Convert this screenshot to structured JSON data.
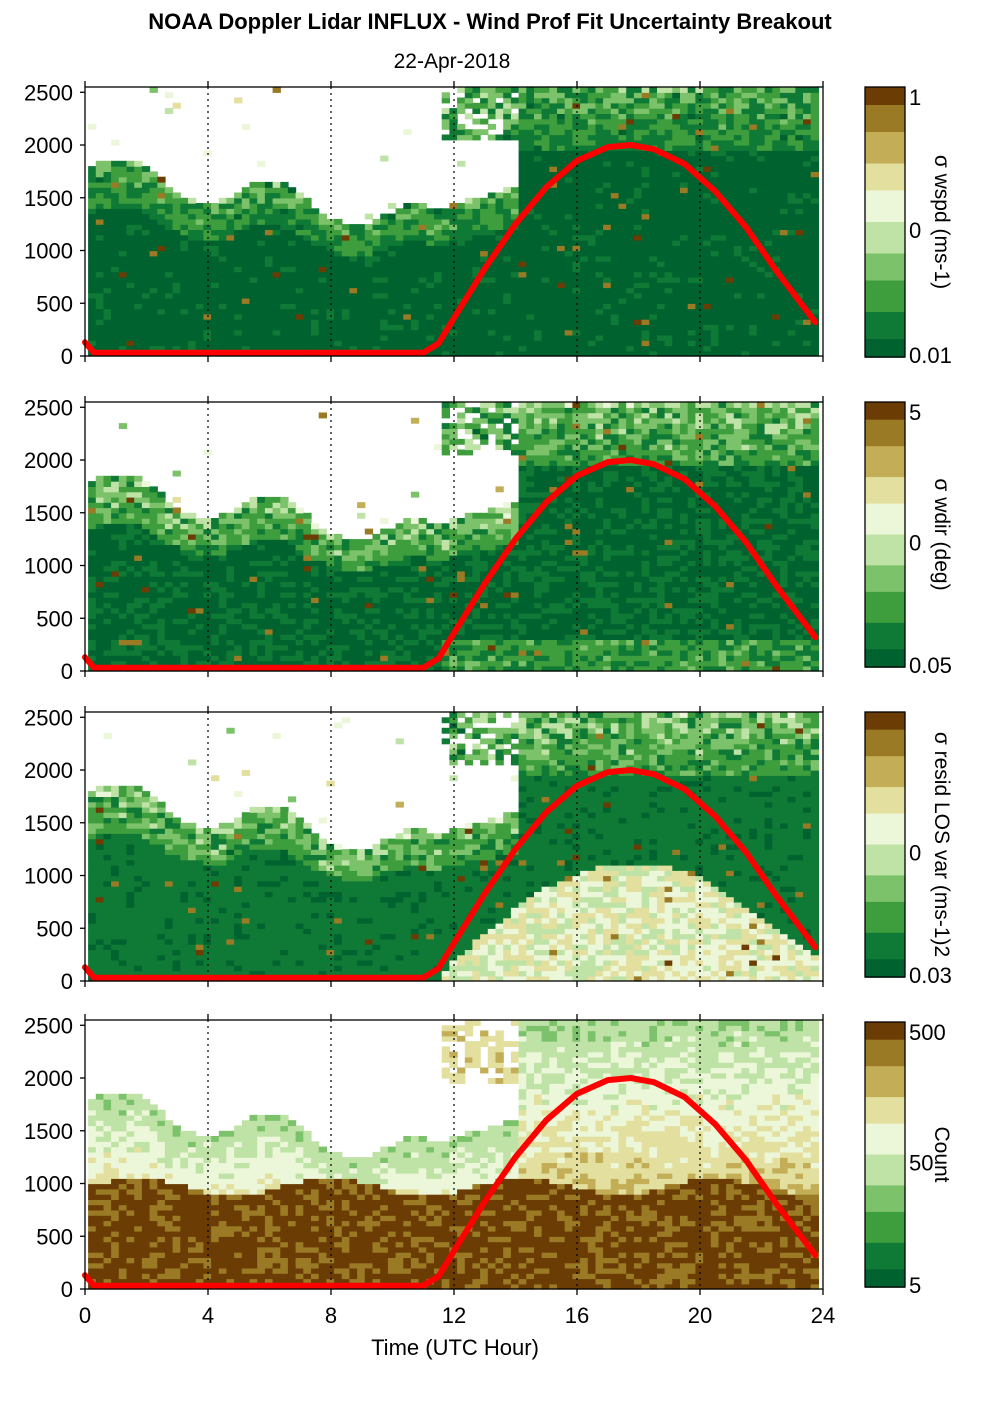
{
  "title": "NOAA Doppler Lidar INFLUX - Wind Prof Fit Uncertainty Breakout",
  "subtitle": "22-Apr-2018",
  "chart_data": {
    "type": "heatmap",
    "xlabel": "Time (UTC Hour)",
    "xlim": [
      0,
      24
    ],
    "xticks": [
      0,
      4,
      8,
      12,
      16,
      20,
      24
    ],
    "ylim": [
      0,
      2550
    ],
    "yticks": [
      0,
      500,
      1000,
      1500,
      2000,
      2500
    ],
    "vertical_gridlines_dotted_at": [
      4,
      8,
      12,
      16,
      20
    ],
    "colormap": [
      "#00622f",
      "#0e7a36",
      "#3e9e3e",
      "#7cc26a",
      "#bfe3a6",
      "#ecf7d9",
      "#e3df9e",
      "#c3ae57",
      "#9a7a25",
      "#6b3d05"
    ],
    "overlay_curve": {
      "color": "#ff0000",
      "x": [
        0,
        0.3,
        11.0,
        11.5,
        12,
        13,
        14,
        15,
        16,
        17,
        17.75,
        18.5,
        19.5,
        20.5,
        21.5,
        22.5,
        23.75
      ],
      "y": [
        130,
        30,
        30,
        120,
        360,
        830,
        1250,
        1600,
        1850,
        1980,
        2000,
        1960,
        1820,
        1560,
        1220,
        800,
        320
      ]
    },
    "panels": [
      {
        "colorbar_label": "σ wspd (ms-1)",
        "cbar_ticks": [
          "1",
          "0",
          "0.01"
        ],
        "cbar_scale": "log"
      },
      {
        "colorbar_label": "σ wdir (deg)",
        "cbar_ticks": [
          "5",
          "0",
          "0.05"
        ],
        "cbar_scale": "log"
      },
      {
        "colorbar_label": "σ resid LOS var (ms-1)2",
        "cbar_ticks": [
          "",
          "0",
          "0.03"
        ],
        "cbar_scale": "log"
      },
      {
        "colorbar_label": "Count",
        "cbar_ticks": [
          "500",
          "50",
          "5"
        ],
        "cbar_scale": "log"
      }
    ]
  }
}
